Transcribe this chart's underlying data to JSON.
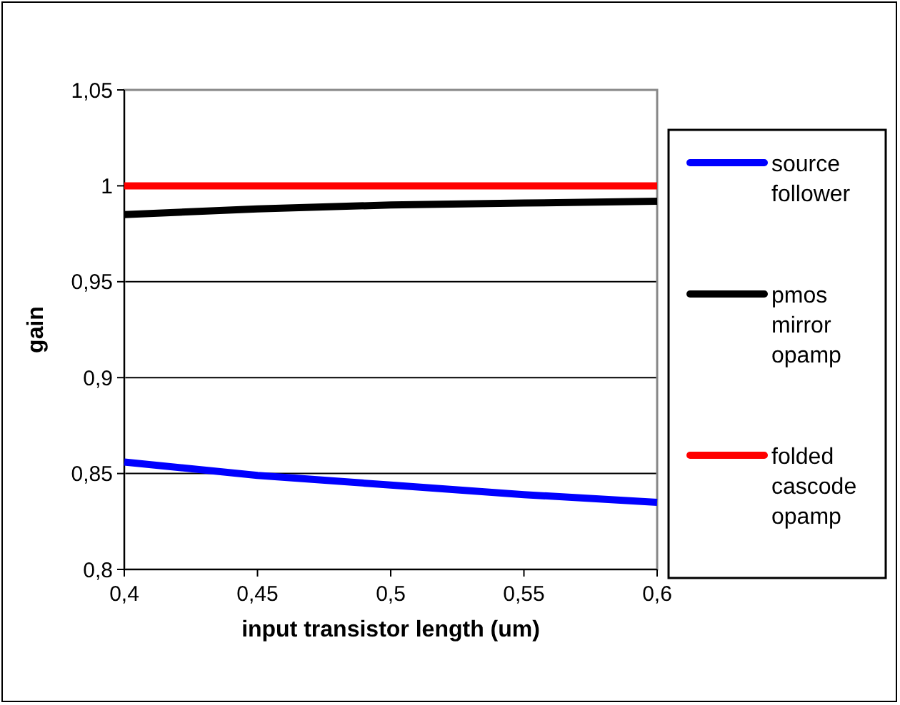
{
  "chart_data": {
    "type": "line",
    "xlabel": "input transistor length (um)",
    "ylabel": "gain",
    "x": [
      0.4,
      0.45,
      0.5,
      0.55,
      0.6
    ],
    "series": [
      {
        "name": "source follower",
        "color": "#0000ff",
        "values": [
          0.856,
          0.849,
          0.844,
          0.839,
          0.835
        ]
      },
      {
        "name": "pmos mirror opamp",
        "color": "#000000",
        "values": [
          0.985,
          0.988,
          0.99,
          0.991,
          0.992
        ]
      },
      {
        "name": "folded cascode opamp",
        "color": "#ff0000",
        "values": [
          1,
          1,
          1,
          1,
          1
        ]
      }
    ],
    "xlim": [
      0.4,
      0.6
    ],
    "xticks": [
      {
        "value": 0.4,
        "label": "0,4"
      },
      {
        "value": 0.45,
        "label": "0,45"
      },
      {
        "value": 0.5,
        "label": "0,5"
      },
      {
        "value": 0.55,
        "label": "0,55"
      },
      {
        "value": 0.6,
        "label": "0,6"
      }
    ],
    "ylim": [
      0.8,
      1.05
    ],
    "yticks": [
      {
        "value": 0.8,
        "label": "0,8"
      },
      {
        "value": 0.85,
        "label": "0,85"
      },
      {
        "value": 0.9,
        "label": "0,9"
      },
      {
        "value": 0.95,
        "label": "0,95"
      },
      {
        "value": 1,
        "label": "1"
      },
      {
        "value": 1.05,
        "label": "1,05"
      }
    ],
    "grid": "y",
    "legend": "right",
    "marker": "none",
    "line_style": "solid"
  }
}
